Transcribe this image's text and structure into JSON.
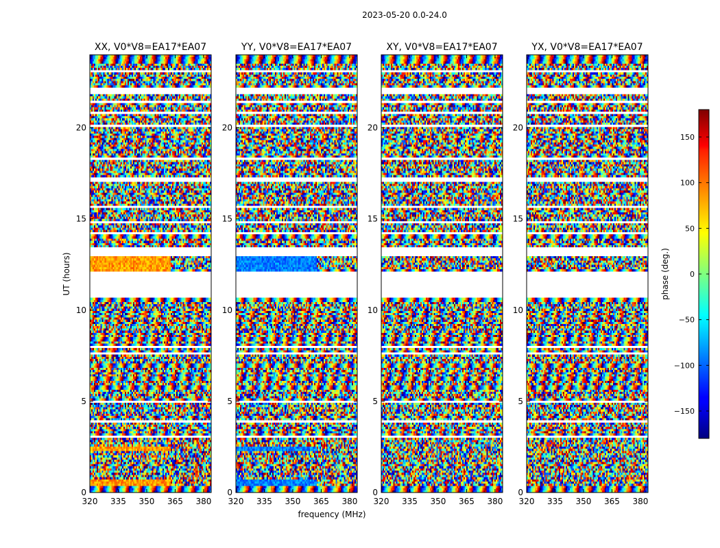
{
  "chart_data": {
    "type": "heatmap",
    "suptitle": "2023-05-20 0.0-24.0",
    "xlabel": "frequency (MHz)",
    "ylabel": "UT (hours)",
    "xlim": [
      320,
      384
    ],
    "ylim": [
      0,
      24
    ],
    "xticks": [
      "320",
      "335",
      "350",
      "365",
      "380"
    ],
    "xtick_values": [
      320,
      335,
      350,
      365,
      380
    ],
    "yticks": [
      "0",
      "5",
      "10",
      "15",
      "20"
    ],
    "ytick_values": [
      0,
      5,
      10,
      15,
      20
    ],
    "colorbar": {
      "label": "phase (deg.)",
      "range": [
        -180,
        180
      ],
      "colormap": "jet",
      "ticks": [
        "−150",
        "−100",
        "−50",
        "0",
        "50",
        "100",
        "150"
      ],
      "tick_values": [
        -150,
        -100,
        -50,
        0,
        50,
        100,
        150
      ]
    },
    "panels": [
      {
        "title": "XX, V0*V8=EA17*EA07",
        "pol": "XX",
        "baseline": "V0*V8=EA17*EA07",
        "note": "coherent phase near +70..+90 deg at 12-13 UT and 0.5 UT for 320-363 MHz"
      },
      {
        "title": "YY, V0*V8=EA17*EA07",
        "pol": "YY",
        "baseline": "V0*V8=EA17*EA07",
        "note": "coherent phase near -80..-100 deg at 12-13 UT and 0.5 UT for 320-363 MHz"
      },
      {
        "title": "XY, V0*V8=EA17*EA07",
        "pol": "XY",
        "baseline": "V0*V8=EA17*EA07",
        "note": "phase noise-like across all bands"
      },
      {
        "title": "YX, V0*V8=EA17*EA07",
        "pol": "YX",
        "baseline": "V0*V8=EA17*EA07",
        "note": "phase noise-like across all bands"
      }
    ],
    "flagged_time_ranges_hours": [
      [
        10.7,
        12.0
      ],
      [
        13.0,
        13.3
      ],
      [
        17.1,
        17.3
      ],
      [
        6.55,
        6.65
      ],
      [
        23.0,
        23.2
      ],
      [
        21.9,
        22.1
      ]
    ],
    "coherent_region": {
      "time_hours": [
        12.0,
        13.0
      ],
      "freq_mhz": [
        320,
        363
      ]
    }
  }
}
